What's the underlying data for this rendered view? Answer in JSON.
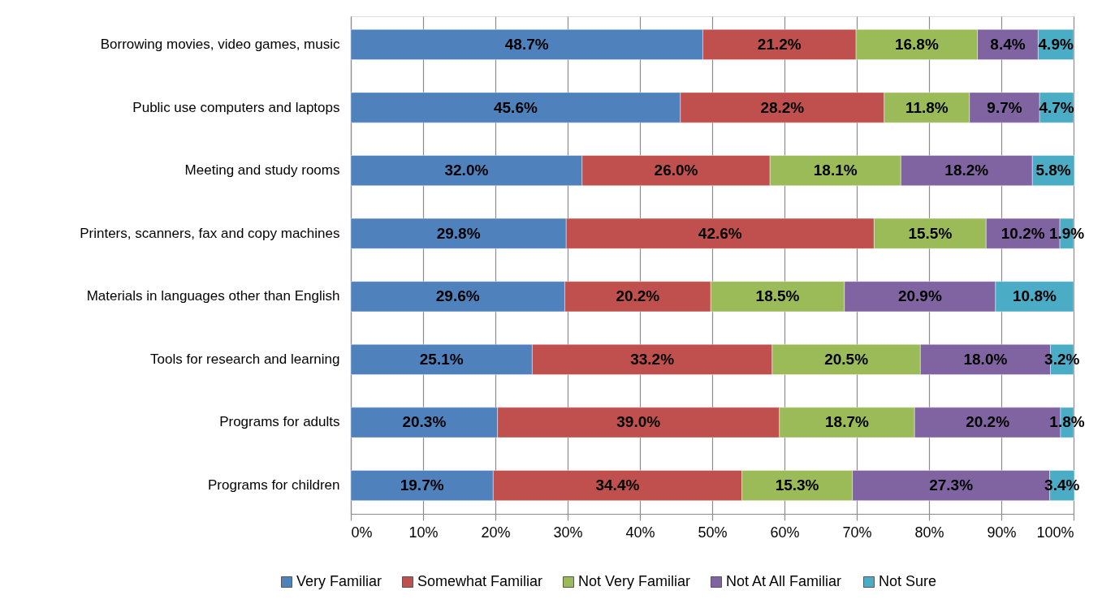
{
  "chart_data": {
    "type": "bar",
    "orientation": "horizontal",
    "stacked": true,
    "categories": [
      "Borrowing movies, video games, music",
      "Public use computers and laptops",
      "Meeting and study rooms",
      "Printers, scanners, fax and copy machines",
      "Materials in languages other than English",
      "Tools for research and learning",
      "Programs for adults",
      "Programs for children"
    ],
    "series": [
      {
        "name": "Very Familiar",
        "color": "#4f81bd",
        "values": [
          48.7,
          45.6,
          32.0,
          29.8,
          29.6,
          25.1,
          20.3,
          19.7
        ],
        "value_labels": [
          "48.7%",
          "45.6%",
          "32.0%",
          "29.8%",
          "29.6%",
          "25.1%",
          "20.3%",
          "19.7%"
        ]
      },
      {
        "name": "Somewhat Familiar",
        "color": "#c0504d",
        "values": [
          21.2,
          28.2,
          26.0,
          42.6,
          20.2,
          33.2,
          39.0,
          34.4
        ],
        "value_labels": [
          "21.2%",
          "28.2%",
          "26.0%",
          "42.6%",
          "20.2%",
          "33.2%",
          "39.0%",
          "34.4%"
        ]
      },
      {
        "name": "Not Very Familiar",
        "color": "#9bbb59",
        "values": [
          16.8,
          11.8,
          18.1,
          15.5,
          18.5,
          20.5,
          18.7,
          15.3
        ],
        "value_labels": [
          "16.8%",
          "11.8%",
          "18.1%",
          "15.5%",
          "18.5%",
          "20.5%",
          "18.7%",
          "15.3%"
        ]
      },
      {
        "name": "Not At All Familiar",
        "color": "#8064a2",
        "values": [
          8.4,
          9.7,
          18.2,
          10.2,
          20.9,
          18.0,
          20.2,
          27.3
        ],
        "value_labels": [
          "8.4%",
          "9.7%",
          "18.2%",
          "10.2%",
          "20.9%",
          "18.0%",
          "20.2%",
          "27.3%"
        ]
      },
      {
        "name": "Not Sure",
        "color": "#4bacc6",
        "values": [
          4.9,
          4.7,
          5.8,
          1.9,
          10.8,
          3.2,
          1.8,
          3.4
        ],
        "value_labels": [
          "4.9%",
          "4.7%",
          "5.8%",
          "1.9%",
          "10.8%",
          "3.2%",
          "1.8%",
          "3.4%"
        ]
      }
    ],
    "xlim": [
      0,
      100
    ],
    "xticks": [
      {
        "value": 0,
        "label": "0%"
      },
      {
        "value": 10,
        "label": "10%"
      },
      {
        "value": 20,
        "label": "20%"
      },
      {
        "value": 30,
        "label": "30%"
      },
      {
        "value": 40,
        "label": "40%"
      },
      {
        "value": 50,
        "label": "50%"
      },
      {
        "value": 60,
        "label": "60%"
      },
      {
        "value": 70,
        "label": "70%"
      },
      {
        "value": 80,
        "label": "80%"
      },
      {
        "value": 90,
        "label": "90%"
      },
      {
        "value": 100,
        "label": "100%"
      }
    ],
    "grid": "x",
    "legend": "bottom"
  }
}
